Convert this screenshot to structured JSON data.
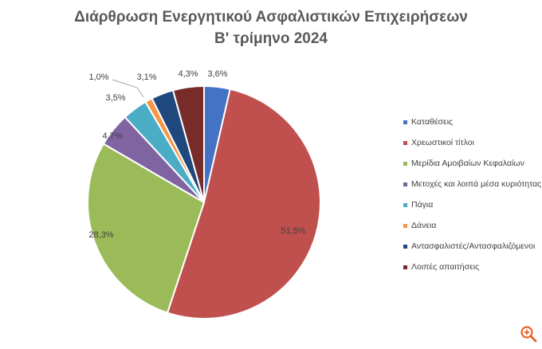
{
  "chart_data": {
    "type": "pie",
    "title_line1": "Διάρθρωση Ενεργητικού Ασφαλιστικών Επιχειρήσεων",
    "title_line2": "Β' τρίμηνο 2024",
    "legend_position": "right",
    "slices": [
      {
        "label": "Καταθέσεις",
        "value": 3.6,
        "value_label": "3,6%",
        "color": "#4472C4"
      },
      {
        "label": "Χρεωστικοί τίτλοι",
        "value": 51.5,
        "value_label": "51,5%",
        "color": "#C0504D"
      },
      {
        "label": "Μερίδια Αμοιβαίων Κεφαλαίων",
        "value": 28.3,
        "value_label": "28,3%",
        "color": "#9BBB59"
      },
      {
        "label": "Μετοχές και λοιπά μέσα κυριότητας",
        "value": 4.7,
        "value_label": "4,7%",
        "color": "#8064A2"
      },
      {
        "label": "Πάγια",
        "value": 3.5,
        "value_label": "3,5%",
        "color": "#4BACC6"
      },
      {
        "label": "Δάνεια",
        "value": 1.0,
        "value_label": "1,0%",
        "color": "#F79646"
      },
      {
        "label": "Αντασφαλιστές/Αντασφαλιζόμενοι",
        "value": 3.1,
        "value_label": "3,1%",
        "color": "#1F497D"
      },
      {
        "label": "Λοιπές απαιτήσεις",
        "value": 4.3,
        "value_label": "4,3%",
        "color": "#772C2A"
      }
    ]
  },
  "zoom_icon": "zoom-in-icon",
  "zoom_color": "#E8602C"
}
